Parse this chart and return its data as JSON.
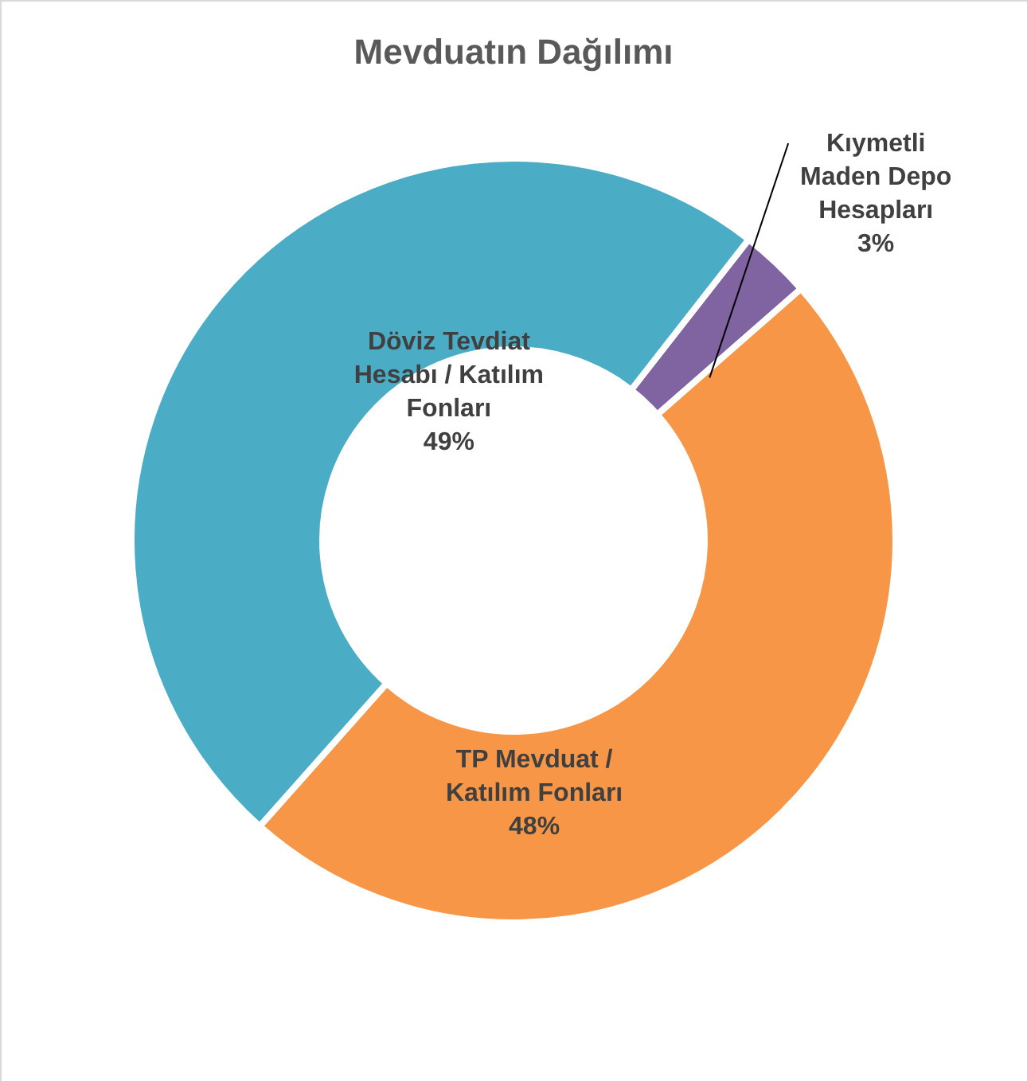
{
  "chart_data": {
    "type": "donut",
    "title": "Mevduatın Dağılımı",
    "categories": [
      "Kıymetli Maden Depo Hesapları",
      "TP Mevduat / Katılım Fonları",
      "Döviz Tevdiat Hesabı / Katılım Fonları"
    ],
    "values": [
      3,
      48,
      49
    ],
    "colors": [
      "#8064a2",
      "#f79646",
      "#4bacc6"
    ],
    "value_labels": [
      "3%",
      "48%",
      "49%"
    ]
  }
}
